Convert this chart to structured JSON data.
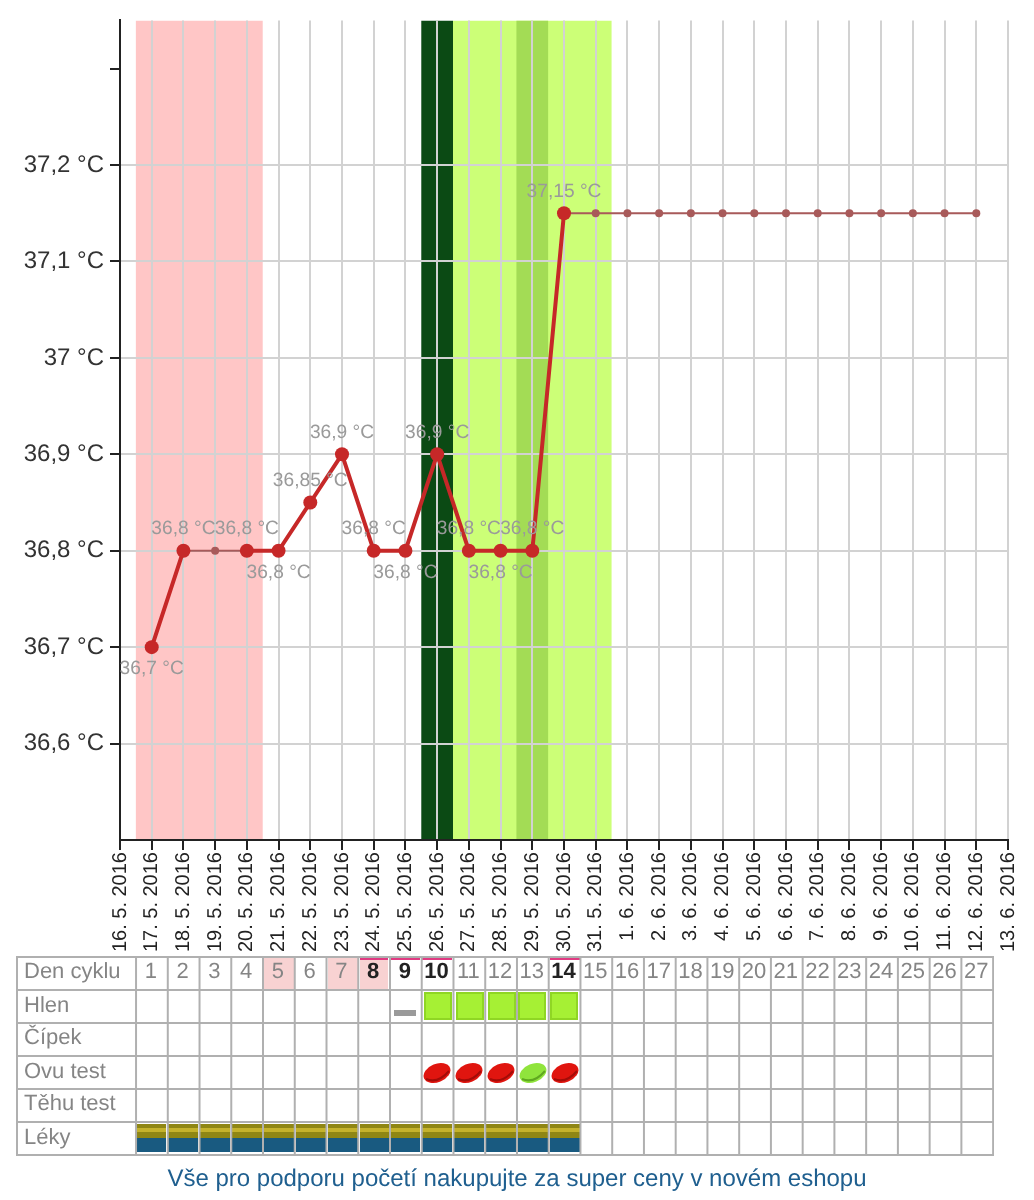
{
  "chart_data": [
    {
      "type": "line",
      "series": [
        {
          "type": "line",
          "color": "#c62828",
          "marker": "circle",
          "line_style": "solid",
          "x": [
            "2016-05-17",
            "2016-05-18",
            "2016-05-19",
            "2016-05-20",
            "2016-05-21",
            "2016-05-22",
            "2016-05-23",
            "2016-05-24",
            "2016-05-25",
            "2016-05-26",
            "2016-05-27",
            "2016-05-28",
            "2016-05-29",
            "2016-05-30"
          ],
          "values": [
            36.7,
            36.8,
            null,
            36.8,
            36.8,
            36.85,
            36.9,
            36.8,
            36.8,
            36.9,
            36.8,
            36.8,
            36.8,
            37.15
          ],
          "value_labels": [
            "36,7 °C",
            "36,8 °C",
            null,
            "36,8 °C",
            "36,8 °C",
            "36,85 °C",
            "36,9 °C",
            "36,8 °C",
            "36,8 °C",
            "36,9 °C",
            "36,8 °C",
            "36,8 °C",
            "36,8 °C",
            "37,15 °C"
          ]
        },
        {
          "type": "line",
          "color": "#a85a5a",
          "marker": "circle",
          "line_style": "solid",
          "x": [
            "2016-05-18",
            "2016-05-19",
            "2016-05-20"
          ],
          "values": [
            36.8,
            36.8,
            36.8
          ]
        },
        {
          "type": "line",
          "color": "#a85a5a",
          "marker": "circle",
          "line_style": "solid",
          "x": [
            "2016-05-30",
            "2016-05-31",
            "2016-06-01",
            "2016-06-02",
            "2016-06-03",
            "2016-06-04",
            "2016-06-05",
            "2016-06-06",
            "2016-06-07",
            "2016-06-08",
            "2016-06-09",
            "2016-06-10",
            "2016-06-11",
            "2016-06-12"
          ],
          "values": [
            37.15,
            37.15,
            37.15,
            37.15,
            37.15,
            37.15,
            37.15,
            37.15,
            37.15,
            37.15,
            37.15,
            37.15,
            37.15,
            37.15
          ]
        }
      ],
      "xlim": [
        "2016-05-16",
        "2016-06-13"
      ],
      "xticks": [
        {
          "value": "2016-05-16",
          "label": "16. 5. 2016"
        },
        {
          "value": "2016-05-17",
          "label": "17. 5. 2016"
        },
        {
          "value": "2016-05-18",
          "label": "18. 5. 2016"
        },
        {
          "value": "2016-05-19",
          "label": "19. 5. 2016"
        },
        {
          "value": "2016-05-20",
          "label": "20. 5. 2016"
        },
        {
          "value": "2016-05-21",
          "label": "21. 5. 2016"
        },
        {
          "value": "2016-05-22",
          "label": "22. 5. 2016"
        },
        {
          "value": "2016-05-23",
          "label": "23. 5. 2016"
        },
        {
          "value": "2016-05-24",
          "label": "24. 5. 2016"
        },
        {
          "value": "2016-05-25",
          "label": "25. 5. 2016"
        },
        {
          "value": "2016-05-26",
          "label": "26. 5. 2016"
        },
        {
          "value": "2016-05-27",
          "label": "27. 5. 2016"
        },
        {
          "value": "2016-05-28",
          "label": "28. 5. 2016"
        },
        {
          "value": "2016-05-29",
          "label": "29. 5. 2016"
        },
        {
          "value": "2016-05-30",
          "label": "30. 5. 2016"
        },
        {
          "value": "2016-05-31",
          "label": "31. 5. 2016"
        },
        {
          "value": "2016-06-01",
          "label": "1. 6. 2016"
        },
        {
          "value": "2016-06-02",
          "label": "2. 6. 2016"
        },
        {
          "value": "2016-06-03",
          "label": "3. 6. 2016"
        },
        {
          "value": "2016-06-04",
          "label": "4. 6. 2016"
        },
        {
          "value": "2016-06-05",
          "label": "5. 6. 2016"
        },
        {
          "value": "2016-06-06",
          "label": "6. 6. 2016"
        },
        {
          "value": "2016-06-07",
          "label": "7. 6. 2016"
        },
        {
          "value": "2016-06-08",
          "label": "8. 6. 2016"
        },
        {
          "value": "2016-06-09",
          "label": "9. 6. 2016"
        },
        {
          "value": "2016-06-10",
          "label": "10. 6. 2016"
        },
        {
          "value": "2016-06-11",
          "label": "11. 6. 2016"
        },
        {
          "value": "2016-06-12",
          "label": "12. 6. 2016"
        },
        {
          "value": "2016-06-13",
          "label": "13. 6. 2016"
        }
      ],
      "x2lim": [
        -3.25,
        28
      ],
      "x2ticks": [
        1,
        2,
        3,
        4,
        5,
        6,
        7,
        8,
        9,
        10,
        11,
        12,
        13,
        14,
        15,
        16,
        17,
        18,
        19,
        20,
        21,
        22,
        23,
        24,
        25,
        26,
        27
      ],
      "x2label": "Den cyklu",
      "ylim": [
        36.5,
        37.35
      ],
      "yticks": [
        {
          "value": 36.6,
          "label": "36,6 °C"
        },
        {
          "value": 36.7,
          "label": "36,7 °C"
        },
        {
          "value": 36.8,
          "label": "36,8 °C"
        },
        {
          "value": 36.9,
          "label": "36,9 °C"
        },
        {
          "value": 37,
          "label": "37 °C"
        },
        {
          "value": 37.1,
          "label": "37,1 °C"
        },
        {
          "value": 37.2,
          "label": "37,2 °C"
        },
        {
          "value": 37.3,
          "label": null
        }
      ],
      "grid": true,
      "bands": [
        {
          "axis": "x",
          "from": "2016-05-16T12:00",
          "to": "2016-05-20T12:00",
          "color": "#ffc6c6"
        },
        {
          "axis": "x",
          "from": "2016-05-25T12:00",
          "to": "2016-05-26T12:00",
          "color": "#0b4a14"
        },
        {
          "axis": "x",
          "from": "2016-05-26T12:00",
          "to": "2016-05-31T12:00",
          "color": "#ccff77"
        },
        {
          "axis": "x",
          "from": "2016-05-28T12:00",
          "to": "2016-05-29T12:00",
          "color": "#a3dc55"
        }
      ],
      "annotations": [
        "Vše pro podporu početí nakupujte za super ceny v novém eshopu"
      ]
    },
    {
      "type": "other",
      "annotations": [
        "Hlen",
        "Čípek",
        "Ovu test",
        "Těhu test",
        "Léky"
      ]
    }
  ]
}
